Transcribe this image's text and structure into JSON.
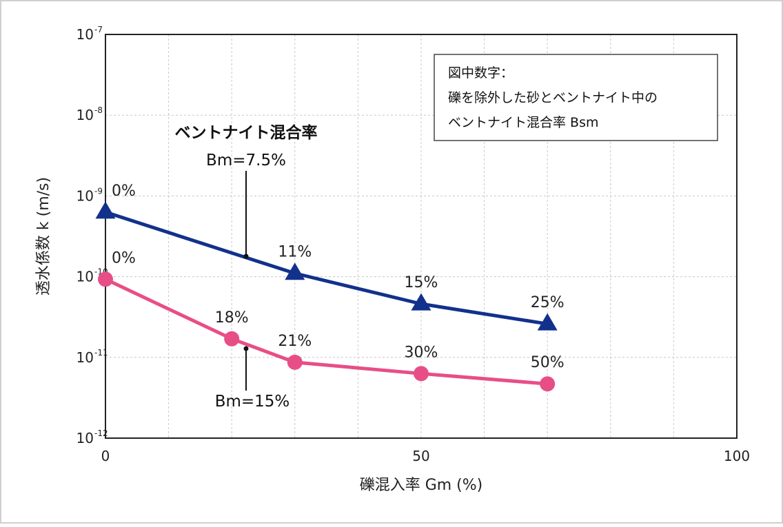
{
  "chart_data": {
    "type": "line",
    "xlabel": "礫混入率 Gm (%)",
    "ylabel": "透水係数 k (m/s)",
    "xlim": [
      0,
      100
    ],
    "ylim_exponent": [
      -12,
      -7
    ],
    "y_scale": "log",
    "x_ticks": [
      "0",
      "50",
      "100"
    ],
    "y_ticks": [
      {
        "base": "10",
        "exp": "-7"
      },
      {
        "base": "10",
        "exp": "-8"
      },
      {
        "base": "10",
        "exp": "-9"
      },
      {
        "base": "10",
        "exp": "-10"
      },
      {
        "base": "10",
        "exp": "-11"
      },
      {
        "base": "10",
        "exp": "-12"
      }
    ],
    "grid": true,
    "series": [
      {
        "name": "Bm=7.5%",
        "color": "#12318c",
        "marker": "triangle",
        "points": [
          {
            "x": 0,
            "y": 6.3e-10,
            "label": "0%"
          },
          {
            "x": 30,
            "y": 1.1e-10,
            "label": "11%"
          },
          {
            "x": 50,
            "y": 4.6e-11,
            "label": "15%"
          },
          {
            "x": 70,
            "y": 2.6e-11,
            "label": "25%"
          }
        ]
      },
      {
        "name": "Bm=15%",
        "color": "#e84e86",
        "marker": "circle",
        "points": [
          {
            "x": 0,
            "y": 9.3e-11,
            "label": "0%"
          },
          {
            "x": 20,
            "y": 1.7e-11,
            "label": "18%"
          },
          {
            "x": 30,
            "y": 8.7e-12,
            "label": "21%"
          },
          {
            "x": 50,
            "y": 6.3e-12,
            "label": "30%"
          },
          {
            "x": 70,
            "y": 4.7e-12,
            "label": "50%"
          }
        ]
      }
    ],
    "annotation": {
      "title": "ベントナイト混合率",
      "series_labels": [
        "Bm=7.5%",
        "Bm=15%"
      ]
    },
    "legend_box": {
      "lines": [
        "図中数字：",
        "礫を除外した砂とベントナイト中の",
        "ベントナイト混合率 Bsm"
      ]
    }
  }
}
